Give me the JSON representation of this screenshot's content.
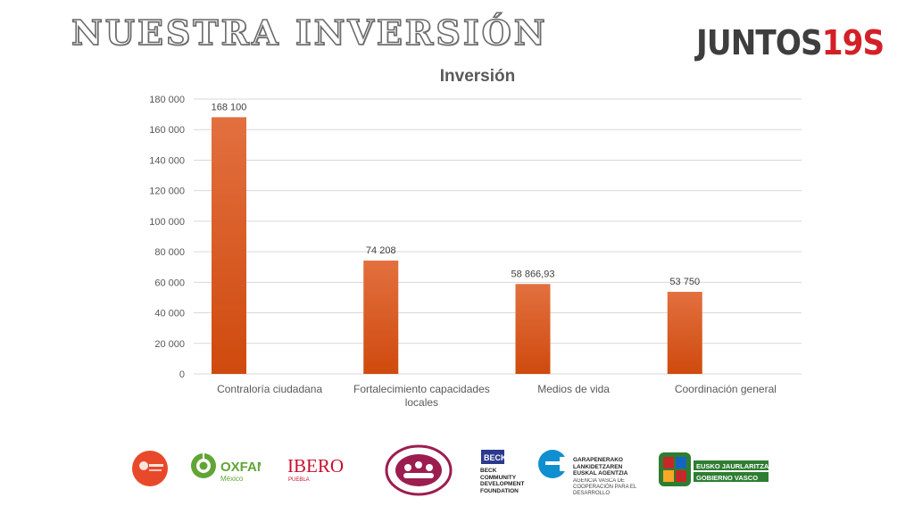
{
  "header": {
    "title": "NUESTRA INVERSIÓN",
    "brand_word": "JUNTOS",
    "brand_number": "19S"
  },
  "colors": {
    "bar_top": "#e2703f",
    "bar_bottom": "#cf4a0e",
    "gridline": "#d9d9d9",
    "axis_text": "#595959",
    "brand_red": "#d32027"
  },
  "chart_data": {
    "type": "bar",
    "title": "Inversión",
    "categories": [
      "Contraloría ciudadana",
      "Fortalecimiento capacidades locales",
      "Medios de vida",
      "Coordinación general"
    ],
    "category_lines": [
      [
        "Contraloría ciudadana"
      ],
      [
        "Fortalecimiento capacidades",
        "locales"
      ],
      [
        "Medios de vida"
      ],
      [
        "Coordinación general"
      ]
    ],
    "values": [
      168100,
      74208,
      58866.93,
      53750
    ],
    "data_labels": [
      "168 100",
      "74 208",
      "58 866,93",
      "53 750"
    ],
    "ylim": [
      0,
      180000
    ],
    "yticks": [
      0,
      20000,
      40000,
      60000,
      80000,
      100000,
      120000,
      140000,
      160000,
      180000
    ],
    "ytick_labels": [
      "0",
      "20 000",
      "40 000",
      "60 000",
      "80 000",
      "100 000",
      "120 000",
      "140 000",
      "160 000",
      "180 000"
    ],
    "grid": true,
    "legend": "none"
  },
  "footer_logos": [
    {
      "icon": "accion-ciudadana-logo",
      "text": ""
    },
    {
      "icon": "oxfam-logo",
      "text": "OXFAM",
      "subtext": "México"
    },
    {
      "icon": "ibero-logo",
      "text": "IBERO",
      "subtext": "PUEBLA"
    },
    {
      "icon": "hands-circle-logo",
      "text": ""
    },
    {
      "icon": "beck-logo",
      "text": "BECK",
      "subtext": "BECK COMMUNITY DEVELOPMENT FOUNDATION"
    },
    {
      "icon": "agencia-vasca-logo",
      "text": "GARAPENERAKO LANKIDETZAREN EUSKAL AGENTZIA",
      "subtext": "AGENCIA VASCA DE COOPERACIÓN PARA EL DESARROLLO"
    },
    {
      "icon": "gobierno-vasco-logo",
      "text": "EUSKO JAURLARITZA",
      "subtext": "GOBIERNO VASCO"
    }
  ]
}
